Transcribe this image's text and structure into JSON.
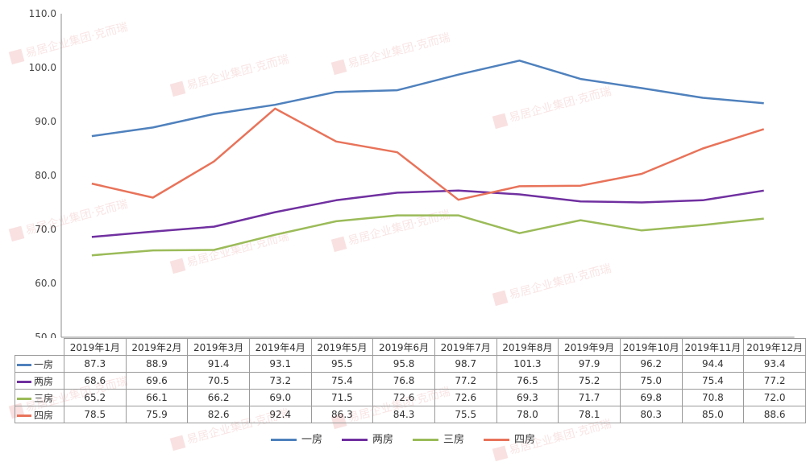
{
  "chart_data": {
    "type": "line",
    "categories": [
      "2019年1月",
      "2019年2月",
      "2019年3月",
      "2019年4月",
      "2019年5月",
      "2019年6月",
      "2019年7月",
      "2019年8月",
      "2019年9月",
      "2019年10月",
      "2019年11月",
      "2019年12月"
    ],
    "ylim": [
      50,
      110
    ],
    "yticks": [
      "50.0",
      "60.0",
      "70.0",
      "80.0",
      "90.0",
      "100.0",
      "110.0"
    ],
    "grid": false,
    "legend_position": "bottom",
    "series": [
      {
        "name": "一房",
        "color": "#4f81bd",
        "values": [
          87.3,
          88.9,
          91.4,
          93.1,
          95.5,
          95.8,
          98.7,
          101.3,
          97.9,
          96.2,
          94.4,
          93.4
        ],
        "labels": [
          "87.3",
          "88.9",
          "91.4",
          "93.1",
          "95.5",
          "95.8",
          "98.7",
          "101.3",
          "97.9",
          "96.2",
          "94.4",
          "93.4"
        ]
      },
      {
        "name": "两房",
        "color": "#7030a0",
        "values": [
          68.6,
          69.6,
          70.5,
          73.2,
          75.4,
          76.8,
          77.2,
          76.5,
          75.2,
          75.0,
          75.4,
          77.2
        ],
        "labels": [
          "68.6",
          "69.6",
          "70.5",
          "73.2",
          "75.4",
          "76.8",
          "77.2",
          "76.5",
          "75.2",
          "75.0",
          "75.4",
          "77.2"
        ]
      },
      {
        "name": "三房",
        "color": "#9bbb59",
        "values": [
          65.2,
          66.1,
          66.2,
          69.0,
          71.5,
          72.6,
          72.6,
          69.3,
          71.7,
          69.8,
          70.8,
          72.0
        ],
        "labels": [
          "65.2",
          "66.1",
          "66.2",
          "69.0",
          "71.5",
          "72.6",
          "72.6",
          "69.3",
          "71.7",
          "69.8",
          "70.8",
          "72.0"
        ]
      },
      {
        "name": "四房",
        "color": "#e8735a",
        "values": [
          78.5,
          75.9,
          82.6,
          92.4,
          86.3,
          84.3,
          75.5,
          78.0,
          78.1,
          80.3,
          85.0,
          88.6
        ],
        "labels": [
          "78.5",
          "75.9",
          "82.6",
          "92.4",
          "86.3",
          "84.3",
          "75.5",
          "78.0",
          "78.1",
          "80.3",
          "85.0",
          "88.6"
        ]
      }
    ]
  },
  "watermark": {
    "text": "易居企业集团·克而瑞"
  }
}
